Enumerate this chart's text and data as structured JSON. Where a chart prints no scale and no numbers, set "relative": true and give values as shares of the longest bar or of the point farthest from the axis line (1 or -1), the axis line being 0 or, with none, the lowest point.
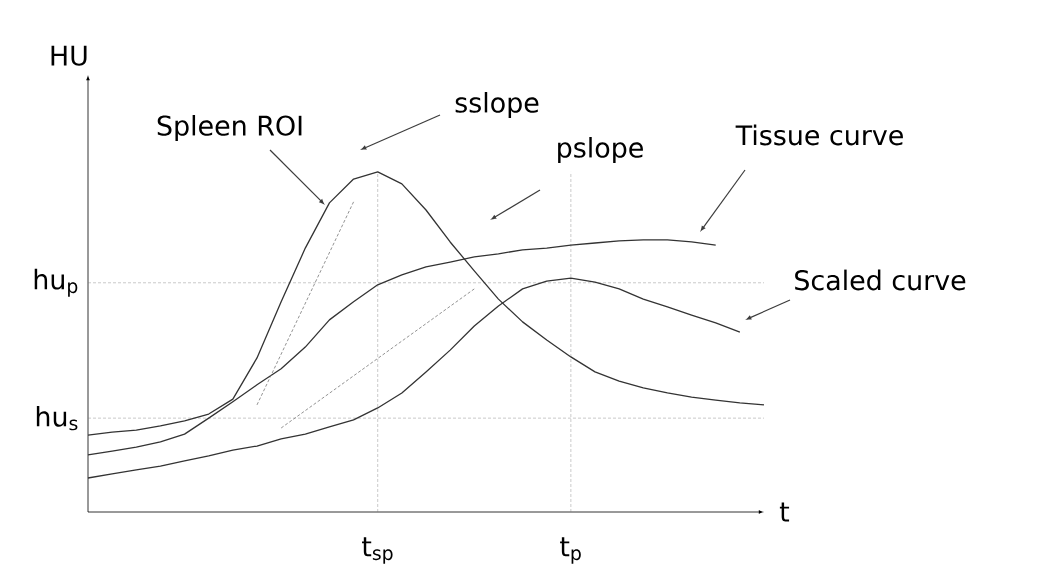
{
  "chart_data": {
    "type": "line",
    "relative": true,
    "xlabel": "t",
    "ylabel": "HU",
    "categories": [
      null,
      null,
      null,
      null,
      null,
      null,
      null,
      null,
      null,
      null,
      null,
      null,
      "t$_{sp}$",
      null,
      null,
      null,
      null,
      null,
      null,
      null,
      "t$_{p}$",
      null,
      null,
      null,
      null,
      null,
      null,
      null,
      null
    ],
    "series": [
      {
        "color": "#333333",
        "values": [
          0.226,
          0.235,
          0.241,
          0.253,
          0.268,
          0.288,
          0.332,
          0.453,
          0.618,
          0.776,
          0.909,
          0.979,
          1,
          0.965,
          0.888,
          0.794,
          0.709,
          0.626,
          0.559,
          0.506,
          0.456,
          0.412,
          0.385,
          0.365,
          0.35,
          0.338,
          0.329,
          0.321,
          0.315
        ]
      },
      {
        "color": "#333333",
        "values": [
          0.168,
          0.179,
          0.191,
          0.206,
          0.229,
          0.276,
          0.324,
          0.374,
          0.421,
          0.485,
          0.565,
          0.618,
          0.668,
          0.697,
          0.721,
          0.735,
          0.75,
          0.759,
          0.771,
          0.776,
          0.785,
          0.791,
          0.797,
          0.8,
          0.8,
          0.794,
          0.785,
          null,
          null
        ]
      },
      {
        "color": "#333333",
        "values": [
          0.1,
          0.112,
          0.124,
          0.135,
          0.15,
          0.165,
          0.182,
          0.194,
          0.215,
          0.229,
          0.25,
          0.271,
          0.306,
          0.35,
          0.412,
          0.476,
          0.547,
          0.606,
          0.656,
          0.679,
          0.688,
          0.676,
          0.656,
          0.626,
          0.603,
          0.579,
          0.556,
          0.529,
          null
        ]
      },
      {
        "color": "#777777",
        "line_style": "dashed",
        "values": [
          null,
          null,
          null,
          null,
          null,
          null,
          null,
          0.315,
          null,
          null,
          null,
          0.912,
          null,
          null,
          null,
          null,
          null,
          null,
          null,
          null,
          null,
          null,
          null,
          null,
          null,
          null,
          null,
          null,
          null
        ]
      },
      {
        "color": "#777777",
        "line_style": "dashed",
        "values": [
          null,
          null,
          null,
          null,
          null,
          null,
          null,
          null,
          0.247,
          null,
          null,
          null,
          null,
          null,
          null,
          null,
          0.656,
          null,
          null,
          null,
          null,
          null,
          null,
          null,
          null,
          null,
          null,
          null,
          null
        ]
      }
    ],
    "ref_lines": [
      {
        "axis": "y",
        "value": 0.674,
        "label": "hu$_{p}$",
        "color": "#777777",
        "line_style": "dashed"
      },
      {
        "axis": "y",
        "value": 0.276,
        "label": "hu$_{s}$",
        "color": "#777777",
        "line_style": "dashed"
      },
      {
        "axis": "x",
        "value": "t$_{sp}$",
        "color": "#777777",
        "line_style": "dashed"
      },
      {
        "axis": "x",
        "value": "t$_{p}$",
        "color": "#777777",
        "line_style": "dashed"
      }
    ],
    "annotations": [
      "Spleen ROI",
      "sslope",
      "pslope",
      "Tissue curve",
      "Scaled curve"
    ]
  }
}
